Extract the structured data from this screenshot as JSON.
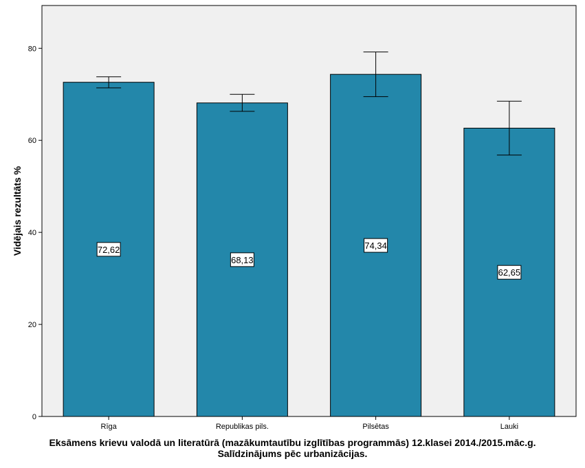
{
  "chart_data": {
    "type": "bar",
    "categories": [
      "Rīga",
      "Republikas pils.",
      "Pilsētas",
      "Lauki"
    ],
    "values": [
      72.62,
      68.13,
      74.34,
      62.65
    ],
    "value_labels": [
      "72,62",
      "68,13",
      "74,34",
      "62,65"
    ],
    "error_low": [
      71.4,
      66.3,
      69.5,
      56.8
    ],
    "error_high": [
      73.8,
      70.0,
      79.2,
      68.5
    ],
    "title": "",
    "xlabel_line1": "Eksāmens krievu valodā un literatūrā (mazākumtautību izglītības programmās) 12.klasei 2014./2015.māc.g.",
    "xlabel_line2": "Salīdzinājums pēc urbanizācijas.",
    "ylabel": "Vidējais rezultāts %",
    "ylim": [
      0,
      89.3
    ],
    "yticks": [
      0,
      20,
      40,
      60,
      80
    ],
    "grid": false,
    "colors": {
      "bar": "#2387aa",
      "plot_bg": "#f0f0f0",
      "axis": "#000000"
    }
  }
}
